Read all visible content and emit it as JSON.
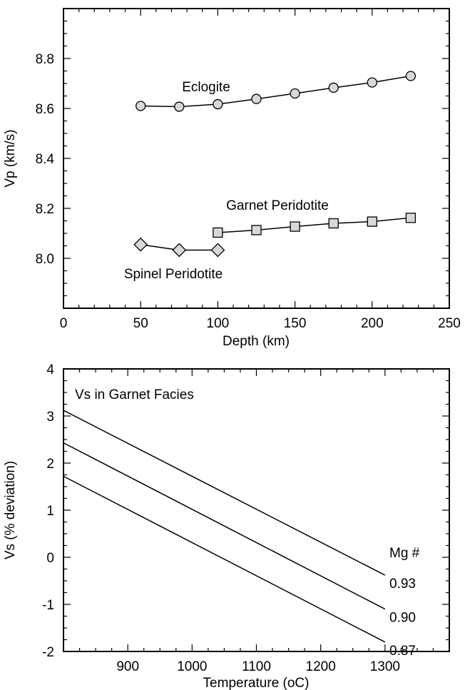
{
  "chart_data": [
    {
      "type": "line",
      "xlabel": "Depth (km)",
      "ylabel": "Vp (km/s)",
      "xlim": [
        0,
        250
      ],
      "ylim": [
        7.8,
        9.0
      ],
      "xticks": [
        0,
        50,
        100,
        150,
        200,
        250
      ],
      "yticks": [
        8.0,
        8.2,
        8.4,
        8.6,
        8.8
      ],
      "xtick_labels": [
        "0",
        "50",
        "100",
        "150",
        "200",
        "250"
      ],
      "ytick_labels": [
        "8.0",
        "8.2",
        "8.4",
        "8.6",
        "8.8"
      ],
      "grid": false,
      "series": [
        {
          "name": "Eclogite",
          "marker": "circle",
          "color": "#d8d8d8",
          "x": [
            50,
            75,
            100,
            125,
            150,
            175,
            200,
            225
          ],
          "y": [
            8.61,
            8.607,
            8.617,
            8.638,
            8.66,
            8.683,
            8.704,
            8.73
          ]
        },
        {
          "name": "Garnet Peridotite",
          "marker": "square",
          "color": "#d8d8d8",
          "x": [
            100,
            125,
            150,
            175,
            200,
            225
          ],
          "y": [
            8.103,
            8.113,
            8.127,
            8.14,
            8.147,
            8.162
          ]
        },
        {
          "name": "Spinel Peridotite",
          "marker": "diamond",
          "color": "#d8d8d8",
          "x": [
            50,
            75,
            100
          ],
          "y": [
            8.055,
            8.033,
            8.033
          ]
        }
      ]
    },
    {
      "type": "line",
      "title": "Vs in Garnet Facies",
      "xlabel": "Temperature (oC)",
      "ylabel": "Vs (% deviation)",
      "xlim": [
        800,
        1400
      ],
      "ylim": [
        -2,
        4
      ],
      "xticks": [
        900,
        1000,
        1100,
        1200,
        1300
      ],
      "yticks": [
        -2,
        -1,
        0,
        1,
        2,
        3,
        4
      ],
      "xtick_labels": [
        "900",
        "1000",
        "1100",
        "1200",
        "1300"
      ],
      "ytick_labels": [
        "-2",
        "-1",
        "0",
        "1",
        "2",
        "3",
        "4"
      ],
      "legend_title": "Mg #",
      "grid": false,
      "series": [
        {
          "name": "0.93",
          "x": [
            800,
            1300
          ],
          "y": [
            3.12,
            -0.38
          ]
        },
        {
          "name": "0.90",
          "x": [
            800,
            1300
          ],
          "y": [
            2.43,
            -1.1
          ]
        },
        {
          "name": "0.87",
          "x": [
            800,
            1300
          ],
          "y": [
            1.72,
            -1.8
          ]
        }
      ]
    }
  ]
}
